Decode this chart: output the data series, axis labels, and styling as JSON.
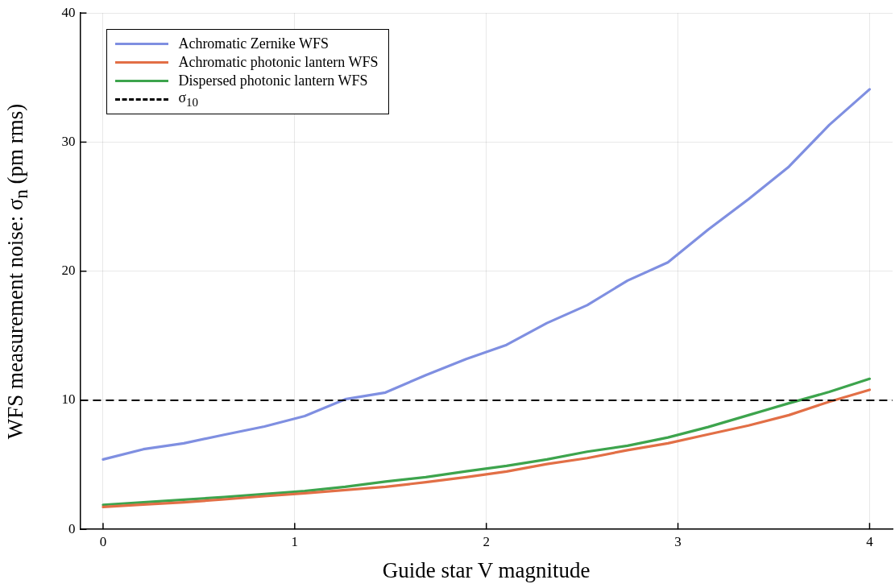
{
  "chart_data": {
    "type": "line",
    "xlabel": "Guide star V magnitude",
    "ylabel": "WFS measurement noise: σ$_{n}$ (pm rms)",
    "x": [
      0,
      0.2105,
      0.4211,
      0.6316,
      0.8421,
      1.0526,
      1.2632,
      1.4737,
      1.6842,
      1.8947,
      2.1053,
      2.3158,
      2.5263,
      2.7368,
      2.9474,
      3.1579,
      3.3684,
      3.5789,
      3.7895,
      4
    ],
    "series": [
      {
        "name": "Achromatic Zernike WFS",
        "color": "#7f8fe1",
        "values": [
          5.42,
          6.21,
          6.67,
          7.33,
          7.97,
          8.78,
          10.08,
          10.6,
          11.95,
          13.19,
          14.29,
          15.98,
          17.37,
          19.27,
          20.68,
          23.23,
          25.58,
          28.1,
          31.33,
          34.09
        ]
      },
      {
        "name": "Achromatic photonic lantern WFS",
        "color": "#e26f46",
        "values": [
          1.74,
          1.92,
          2.1,
          2.32,
          2.57,
          2.8,
          3.05,
          3.3,
          3.65,
          4.05,
          4.48,
          5.06,
          5.52,
          6.14,
          6.67,
          7.36,
          8.05,
          8.85,
          9.89,
          10.81
        ]
      },
      {
        "name": "Dispersed photonic lantern WFS",
        "color": "#3da44d",
        "values": [
          1.9,
          2.1,
          2.3,
          2.5,
          2.73,
          2.97,
          3.3,
          3.7,
          4.05,
          4.5,
          4.92,
          5.42,
          6.02,
          6.48,
          7.12,
          7.93,
          8.85,
          9.77,
          10.65,
          11.66
        ]
      }
    ],
    "ref_lines": [
      {
        "axis": "y",
        "value": 10,
        "label": "σ$_{10}$",
        "color": "#000000",
        "line_style": "dashed"
      }
    ],
    "xlim": [
      -0.12,
      4.12
    ],
    "xticks": [
      0,
      1,
      2,
      3,
      4
    ],
    "ylim": [
      0,
      40
    ],
    "yticks": [
      0,
      10,
      20,
      30,
      40
    ],
    "grid": true,
    "legend": "top left",
    "marker": "none",
    "line_style": "solid"
  }
}
